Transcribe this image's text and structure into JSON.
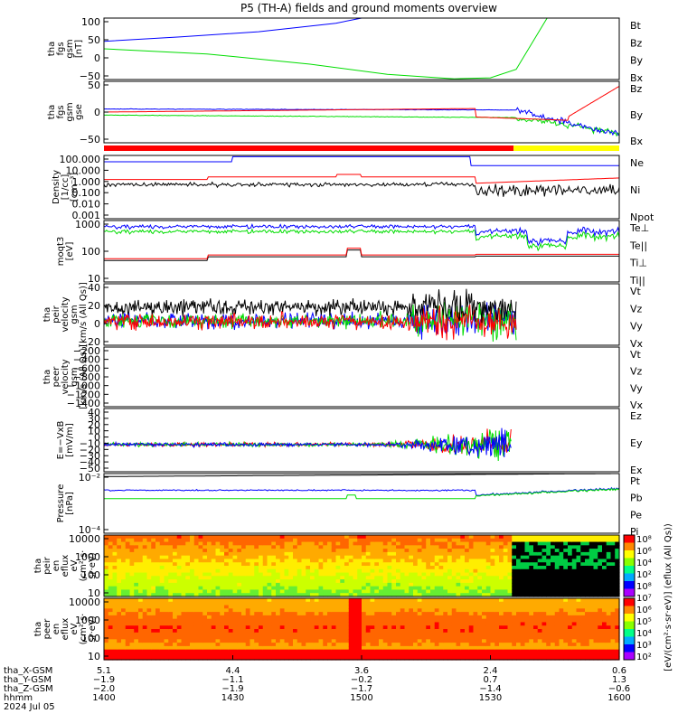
{
  "title": "P5 (TH-A) fields and ground moments overview",
  "colors": {
    "black": "#000000",
    "red": "#ff0000",
    "green": "#00dd00",
    "blue": "#0000ff",
    "yellow": "#ffff00"
  },
  "chart_data": [
    {
      "type": "line",
      "ylabel": [
        "tha",
        "fgs",
        "gsm",
        "[nT]"
      ],
      "yticks": [
        "100",
        "50",
        "0",
        "−50"
      ],
      "legend": [
        {
          "name": "Bt",
          "color": "#000000"
        },
        {
          "name": "Bz",
          "color": "#ff0000"
        },
        {
          "name": "By",
          "color": "#00dd00"
        },
        {
          "name": "Bx",
          "color": "#0000ff"
        }
      ],
      "ylim": [
        -80,
        100
      ],
      "series": [
        {
          "name": "Bx",
          "color": "#0000ff",
          "x": [
            0,
            0.15,
            0.3,
            0.45,
            0.5
          ],
          "y": [
            32,
            45,
            60,
            85,
            100
          ]
        },
        {
          "name": "By",
          "color": "#00dd00",
          "x": [
            0,
            0.2,
            0.4,
            0.55,
            0.68,
            0.75,
            0.8,
            0.86
          ],
          "y": [
            10,
            -5,
            -35,
            -65,
            -78,
            -75,
            -50,
            100
          ]
        }
      ]
    },
    {
      "type": "line",
      "ylabel": [
        "tha",
        "fgs",
        "gsm",
        "gse"
      ],
      "yticks": [
        "50",
        "0",
        "−50"
      ],
      "legend": [
        {
          "name": "Bz",
          "color": "#ff0000"
        },
        {
          "name": "By",
          "color": "#00dd00"
        },
        {
          "name": "Bx",
          "color": "#0000ff"
        }
      ],
      "ylim": [
        -80,
        80
      ]
    },
    {
      "type": "line",
      "ylabel": [
        "Density",
        "[1/cc]",
        "[cm⁻³]"
      ],
      "yticks": [
        "100.000",
        "10.000",
        "1.000",
        "0.100",
        "0.010",
        "0.001"
      ],
      "legend": [
        {
          "name": "Ne",
          "color": "#ff0000"
        },
        {
          "name": "Ni",
          "color": "#000000"
        },
        {
          "name": "Npot",
          "color": "#0000ff"
        }
      ]
    },
    {
      "type": "line",
      "ylabel": [
        "moqt3",
        "[eV]"
      ],
      "yticks": [
        "1000",
        "100",
        "10"
      ],
      "legend": [
        {
          "name": "Te⊥",
          "color": "#ff0000"
        },
        {
          "name": "Te||",
          "color": "#000000"
        },
        {
          "name": "Ti⊥",
          "color": "#0000ff"
        },
        {
          "name": "Ti||",
          "color": "#00dd00"
        }
      ]
    },
    {
      "type": "line",
      "ylabel": [
        "tha",
        "peir",
        "velocity",
        "gsm",
        "[km/s (All Qs)]"
      ],
      "yticks": [
        "40",
        "20",
        "0",
        "−20"
      ],
      "legend": [
        {
          "name": "Vt",
          "color": "#000000"
        },
        {
          "name": "Vz",
          "color": "#ff0000"
        },
        {
          "name": "Vy",
          "color": "#00dd00"
        },
        {
          "name": "Vx",
          "color": "#0000ff"
        }
      ]
    },
    {
      "type": "line",
      "ylabel": [
        "tha",
        "peer",
        "velocity",
        "gsm",
        "[km/s (All Qs)]"
      ],
      "yticks": [
        "−200",
        "−400",
        "−600",
        "−800",
        "−1000",
        "−1200",
        "−1400"
      ],
      "legend": [
        {
          "name": "Vt",
          "color": "#000000"
        },
        {
          "name": "Vz",
          "color": "#ff0000"
        },
        {
          "name": "Vy",
          "color": "#00dd00"
        },
        {
          "name": "Vx",
          "color": "#0000ff"
        }
      ]
    },
    {
      "type": "line",
      "ylabel": [
        "E=−VxB",
        "[mV/m]"
      ],
      "yticks": [
        "40",
        "30",
        "20",
        "10",
        "0",
        "−10",
        "−20",
        "−30",
        "−40",
        "−50"
      ],
      "legend": [
        {
          "name": "Ez",
          "color": "#ff0000"
        },
        {
          "name": "Ey",
          "color": "#00dd00"
        },
        {
          "name": "Ex",
          "color": "#0000ff"
        }
      ]
    },
    {
      "type": "line",
      "ylabel": [
        "Pressure",
        "[nPa]"
      ],
      "yticks": [
        "10⁻²",
        "10⁻⁴"
      ],
      "legend": [
        {
          "name": "Pt",
          "color": "#000000"
        },
        {
          "name": "Pb",
          "color": "#ff0000"
        },
        {
          "name": "Pe",
          "color": "#00dd00"
        },
        {
          "name": "Pi",
          "color": "#0000ff"
        }
      ]
    },
    {
      "type": "heatmap",
      "ylabel": [
        "tha",
        "peir",
        "en",
        "eflux",
        "eV",
        "(cm²·s·",
        "sr·eV)"
      ],
      "yticks": [
        "10000",
        "1000",
        "100",
        "10"
      ]
    },
    {
      "type": "heatmap",
      "ylabel": [
        "tha",
        "peer",
        "en",
        "eflux",
        "eV",
        "(cm²·s·",
        "sr·eV)"
      ],
      "yticks": [
        "10000",
        "1000",
        "100",
        "10"
      ]
    }
  ],
  "colorbar": {
    "ticks": [
      "10⁸",
      "10⁶",
      "10⁴",
      "10²",
      "10⁸",
      "10⁷",
      "10⁶",
      "10⁵",
      "10⁴",
      "10³",
      "10²"
    ],
    "label": "[eV/(cm²·s·sr·eV)] (eflux (All Qs))"
  },
  "xaxis": {
    "ticks": [
      "1400",
      "1430",
      "1500",
      "1530",
      "1600"
    ],
    "rows": [
      {
        "label": "tha_X-GSM",
        "values": [
          "5.1",
          "4.4",
          "3.6",
          "2.4",
          "0.6"
        ]
      },
      {
        "label": "tha_Y-GSM",
        "values": [
          "−1.9",
          "−1.1",
          "−0.2",
          "0.7",
          "1.3"
        ]
      },
      {
        "label": "tha_Z-GSM",
        "values": [
          "−2.0",
          "−1.9",
          "−1.7",
          "−1.4",
          "−0.6"
        ]
      },
      {
        "label": "hhmm",
        "values": [
          "1400",
          "1430",
          "1500",
          "1530",
          "1600"
        ]
      }
    ],
    "date": "2024 Jul 05"
  }
}
